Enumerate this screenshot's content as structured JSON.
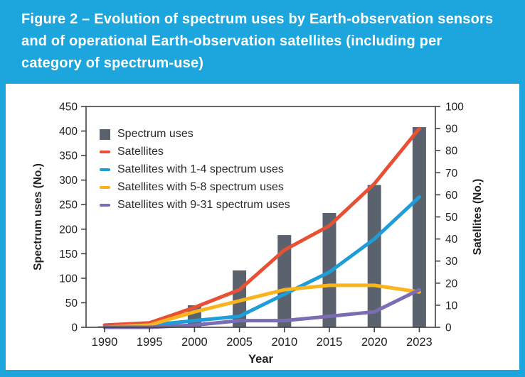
{
  "header": {
    "title": "Figure 2 – Evolution of spectrum uses by Earth-observation sensors and of operational Earth-observation satellites (including per category of spectrum-use)",
    "background_color": "#1CA6DD",
    "text_color": "#FFFFFF"
  },
  "chart_data": {
    "type": "bar+line combo",
    "categories": [
      "1990",
      "1995",
      "2000",
      "2005",
      "2010",
      "2015",
      "2020",
      "2023"
    ],
    "bar_series": {
      "key": "spectrum-uses",
      "name": "Spectrum uses",
      "axis": "left",
      "color": "#59626D",
      "values": [
        2,
        4,
        45,
        116,
        188,
        233,
        290,
        408
      ]
    },
    "line_series": [
      {
        "key": "satellites",
        "name": "Satellites",
        "axis": "right",
        "color": "#E85035",
        "values": [
          1,
          2,
          9,
          17,
          35,
          46,
          65,
          90
        ]
      },
      {
        "key": "satellites-1-4",
        "name": "Satellites with 1-4 spectrum uses",
        "axis": "right",
        "color": "#1F9DD9",
        "values": [
          0,
          1,
          3,
          5,
          15,
          25,
          40,
          59
        ]
      },
      {
        "key": "satellites-5-8",
        "name": "Satellites with 5-8 spectrum uses",
        "axis": "right",
        "color": "#F9B41E",
        "values": [
          0,
          1,
          7,
          12,
          17,
          19,
          19,
          16
        ]
      },
      {
        "key": "satellites-9-31",
        "name": "Satellites with 9-31 spectrum uses",
        "axis": "right",
        "color": "#7C6CB4",
        "values": [
          0,
          0,
          1,
          3,
          3,
          5,
          7,
          17
        ]
      }
    ],
    "xlabel": "Year",
    "left_axis": {
      "label": "Spectrum uses (No.)",
      "min": 0,
      "max": 450,
      "step": 50,
      "label_color": "#231F20"
    },
    "right_axis": {
      "label": "Satellites (No.)",
      "min": 0,
      "max": 100,
      "step": 10,
      "label_color": "#E85035"
    },
    "legend": [
      {
        "key": "spectrum-uses",
        "label": "Spectrum uses",
        "swatch": "square",
        "color": "#59626D"
      },
      {
        "key": "satellites",
        "label": "Satellites",
        "swatch": "line",
        "color": "#E85035"
      },
      {
        "key": "satellites-1-4",
        "label": "Satellites with 1-4 spectrum uses",
        "swatch": "line",
        "color": "#1F9DD9"
      },
      {
        "key": "satellites-5-8",
        "label": "Satellites with 5-8 spectrum uses",
        "swatch": "line",
        "color": "#F9B41E"
      },
      {
        "key": "satellites-9-31",
        "label": "Satellites with 9-31 spectrum uses",
        "swatch": "line",
        "color": "#7C6CB4"
      }
    ],
    "legend_position": "top-left-inside",
    "grid": false,
    "axis_color": "#414042"
  }
}
